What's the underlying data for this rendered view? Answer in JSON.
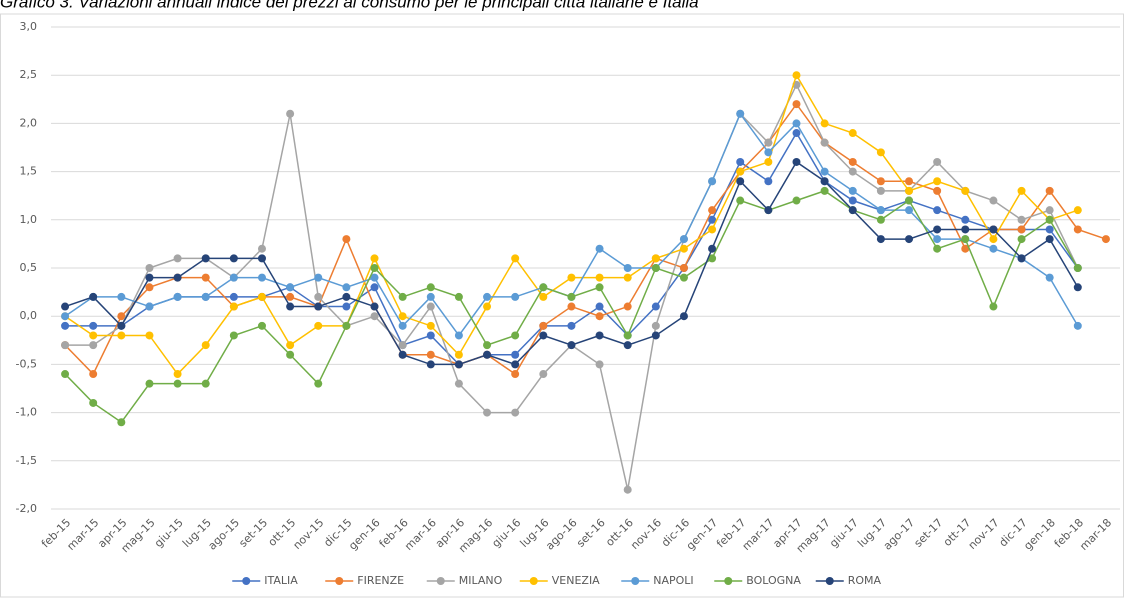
{
  "chart_data": {
    "type": "line",
    "title": "Grafico 3. Variazioni annuali indice dei prezzi al consumo per le principali città italiane e Italia",
    "categories": [
      "feb-15",
      "mar-15",
      "apr-15",
      "mag-15",
      "giu-15",
      "lug-15",
      "ago-15",
      "set-15",
      "ott-15",
      "nov-15",
      "dic-15",
      "gen-16",
      "feb-16",
      "mar-16",
      "apr-16",
      "mag-16",
      "giu-16",
      "lug-16",
      "ago-16",
      "set-16",
      "ott-16",
      "nov-16",
      "dic-16",
      "gen-17",
      "feb-17",
      "mar-17",
      "apr-17",
      "mag-17",
      "giu-17",
      "lug-17",
      "ago-17",
      "set-17",
      "ott-17",
      "nov-17",
      "dic-17",
      "gen-18",
      "feb-18",
      "mar-18"
    ],
    "series": [
      {
        "name": "ITALIA",
        "color": "#4472c4",
        "values": [
          -0.1,
          -0.1,
          -0.1,
          0.1,
          0.2,
          0.2,
          0.2,
          0.2,
          0.3,
          0.1,
          0.1,
          0.3,
          -0.3,
          -0.2,
          -0.5,
          -0.4,
          -0.4,
          -0.1,
          -0.1,
          0.1,
          -0.2,
          0.1,
          0.5,
          1.0,
          1.6,
          1.4,
          1.9,
          1.4,
          1.2,
          1.1,
          1.2,
          1.1,
          1.0,
          0.9,
          0.9,
          0.9,
          0.5,
          null
        ]
      },
      {
        "name": "FIRENZE",
        "color": "#ed7d31",
        "values": [
          -0.3,
          -0.6,
          0.0,
          0.3,
          0.4,
          0.4,
          0.1,
          0.2,
          0.2,
          0.1,
          0.8,
          0.1,
          -0.4,
          -0.4,
          -0.5,
          -0.4,
          -0.6,
          -0.1,
          0.1,
          0.0,
          0.1,
          0.6,
          0.5,
          1.1,
          1.5,
          1.8,
          2.2,
          1.8,
          1.6,
          1.4,
          1.4,
          1.3,
          0.7,
          0.9,
          0.9,
          1.3,
          0.9,
          0.8
        ]
      },
      {
        "name": "MILANO",
        "color": "#a5a5a5",
        "values": [
          -0.3,
          -0.3,
          -0.1,
          0.5,
          0.6,
          0.6,
          0.4,
          0.7,
          2.1,
          0.2,
          -0.1,
          0.0,
          -0.3,
          0.1,
          -0.7,
          -1.0,
          -1.0,
          -0.6,
          -0.3,
          -0.5,
          -1.8,
          -0.1,
          0.8,
          1.4,
          2.1,
          1.8,
          2.4,
          1.8,
          1.5,
          1.3,
          1.3,
          1.6,
          1.3,
          1.2,
          1.0,
          1.1,
          0.5,
          null
        ]
      },
      {
        "name": "VENEZIA",
        "color": "#ffc000",
        "values": [
          0.0,
          -0.2,
          -0.2,
          -0.2,
          -0.6,
          -0.3,
          0.1,
          0.2,
          -0.3,
          -0.1,
          -0.1,
          0.6,
          0.0,
          -0.1,
          -0.4,
          0.1,
          0.6,
          0.2,
          0.4,
          0.4,
          0.4,
          0.6,
          0.7,
          0.9,
          1.5,
          1.6,
          2.5,
          2.0,
          1.9,
          1.7,
          1.3,
          1.4,
          1.3,
          0.8,
          1.3,
          1.0,
          1.1,
          null
        ]
      },
      {
        "name": "NAPOLI",
        "color": "#5b9bd5",
        "values": [
          0.0,
          0.2,
          0.2,
          0.1,
          0.2,
          0.2,
          0.4,
          0.4,
          0.3,
          0.4,
          0.3,
          0.4,
          -0.1,
          0.2,
          -0.2,
          0.2,
          0.2,
          0.3,
          0.2,
          0.7,
          0.5,
          0.5,
          0.8,
          1.4,
          2.1,
          1.7,
          2.0,
          1.5,
          1.3,
          1.1,
          1.1,
          0.8,
          0.8,
          0.7,
          0.6,
          0.4,
          -0.1,
          null
        ]
      },
      {
        "name": "BOLOGNA",
        "color": "#70ad47",
        "values": [
          -0.6,
          -0.9,
          -1.1,
          -0.7,
          -0.7,
          -0.7,
          -0.2,
          -0.1,
          -0.4,
          -0.7,
          -0.1,
          0.5,
          0.2,
          0.3,
          0.2,
          -0.3,
          -0.2,
          0.3,
          0.2,
          0.3,
          -0.2,
          0.5,
          0.4,
          0.6,
          1.2,
          1.1,
          1.2,
          1.3,
          1.1,
          1.0,
          1.2,
          0.7,
          0.8,
          0.1,
          0.8,
          1.0,
          0.5,
          null
        ]
      },
      {
        "name": "ROMA",
        "color": "#264478",
        "values": [
          0.1,
          0.2,
          -0.1,
          0.4,
          0.4,
          0.6,
          0.6,
          0.6,
          0.1,
          0.1,
          0.2,
          0.1,
          -0.4,
          -0.5,
          -0.5,
          -0.4,
          -0.5,
          -0.2,
          -0.3,
          -0.2,
          -0.3,
          -0.2,
          0.0,
          0.7,
          1.4,
          1.1,
          1.6,
          1.4,
          1.1,
          0.8,
          0.8,
          0.9,
          0.9,
          0.9,
          0.6,
          0.8,
          0.3,
          null
        ]
      }
    ],
    "ylim": [
      -2,
      3
    ],
    "yticks": [
      {
        "value": -2,
        "label": "-2,0"
      },
      {
        "value": -1.5,
        "label": "-1,5"
      },
      {
        "value": -1,
        "label": "-1,0"
      },
      {
        "value": -0.5,
        "label": "-0,5"
      },
      {
        "value": 0,
        "label": "0,0"
      },
      {
        "value": 0.5,
        "label": "0,5"
      },
      {
        "value": 1,
        "label": "1,0"
      },
      {
        "value": 1.5,
        "label": "1,5"
      },
      {
        "value": 2,
        "label": "2,0"
      },
      {
        "value": 2.5,
        "label": "2,5"
      },
      {
        "value": 3,
        "label": "3,0"
      }
    ],
    "grid": true,
    "legend": "bottom"
  }
}
